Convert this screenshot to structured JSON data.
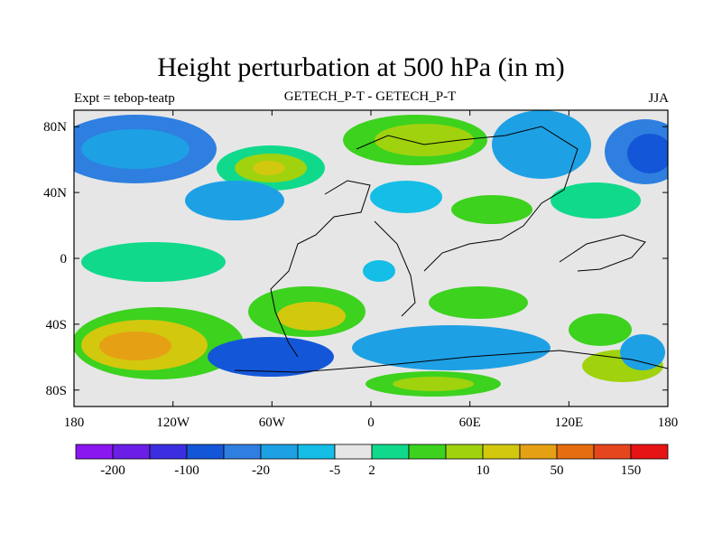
{
  "title": "Height perturbation at 500 hPa (in m)",
  "subtitle_left": "Expt = tebop-teatp",
  "subtitle_center": "GETECH_P-T - GETECH_P-T",
  "subtitle_right": "JJA",
  "x_ticks": [
    "180",
    "120W",
    "60W",
    "0",
    "60E",
    "120E",
    "180"
  ],
  "y_ticks": [
    "80N",
    "40N",
    "0",
    "40S",
    "80S"
  ],
  "colorbar": {
    "colors": [
      "#8a16f0",
      "#6a1ee6",
      "#3b2ee0",
      "#1456d8",
      "#2e7fe0",
      "#1ea0e4",
      "#14bee6",
      "#e6e6e6",
      "#10d98c",
      "#3cd21e",
      "#a0d20e",
      "#d2c80e",
      "#e6a014",
      "#e66e10",
      "#e6461e",
      "#e61414"
    ],
    "labels": [
      "-200",
      "-100",
      "-20",
      "-5",
      "2",
      "10",
      "50",
      "150"
    ]
  }
}
